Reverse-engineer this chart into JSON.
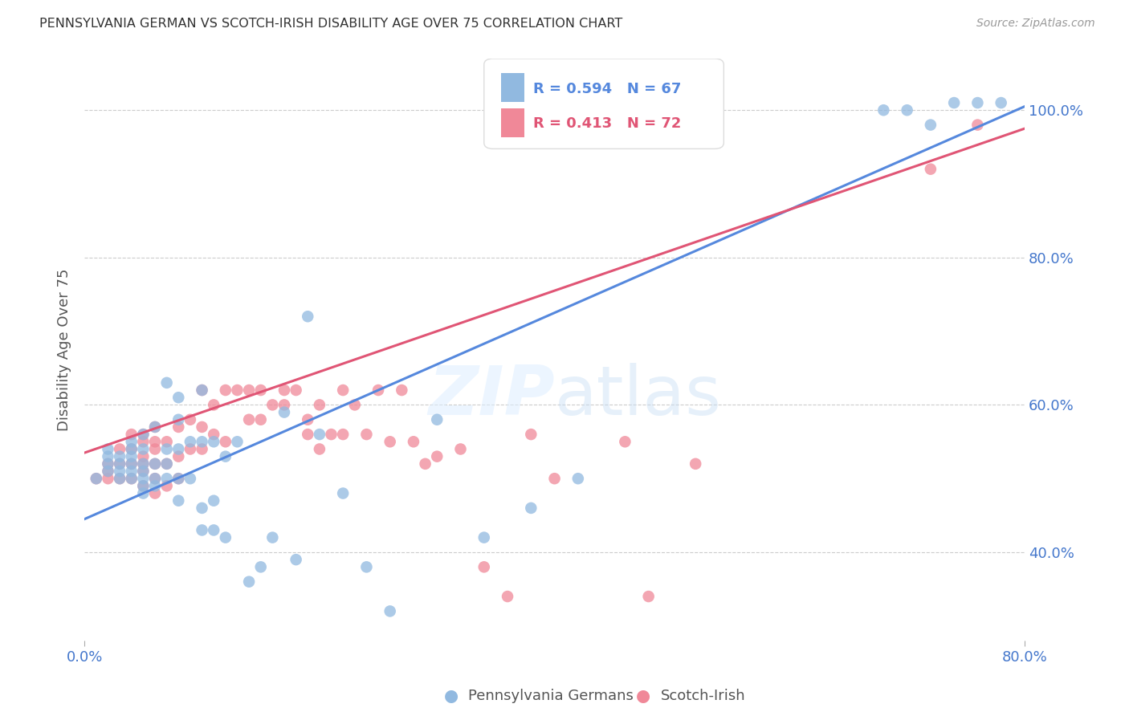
{
  "title": "PENNSYLVANIA GERMAN VS SCOTCH-IRISH DISABILITY AGE OVER 75 CORRELATION CHART",
  "source": "Source: ZipAtlas.com",
  "ylabel": "Disability Age Over 75",
  "xlabel_ticks": [
    "0.0%",
    "80.0%"
  ],
  "ylabel_ticks": [
    "40.0%",
    "60.0%",
    "80.0%",
    "100.0%"
  ],
  "xmin": 0.0,
  "xmax": 0.8,
  "ymin": 0.28,
  "ymax": 1.07,
  "legend1_label": "Pennsylvania Germans",
  "legend2_label": "Scotch-Irish",
  "legend1_color": "#91b9e0",
  "legend2_color": "#f08898",
  "trendline1_color": "#5588dd",
  "trendline2_color": "#e05575",
  "R1": 0.594,
  "N1": 67,
  "R2": 0.413,
  "N2": 72,
  "axis_tick_color": "#4477cc",
  "grid_color": "#cccccc",
  "pg_x": [
    0.01,
    0.02,
    0.02,
    0.02,
    0.02,
    0.03,
    0.03,
    0.03,
    0.03,
    0.04,
    0.04,
    0.04,
    0.04,
    0.04,
    0.04,
    0.05,
    0.05,
    0.05,
    0.05,
    0.05,
    0.05,
    0.05,
    0.06,
    0.06,
    0.06,
    0.06,
    0.07,
    0.07,
    0.07,
    0.07,
    0.08,
    0.08,
    0.08,
    0.08,
    0.08,
    0.09,
    0.09,
    0.1,
    0.1,
    0.1,
    0.1,
    0.11,
    0.11,
    0.11,
    0.12,
    0.12,
    0.13,
    0.14,
    0.15,
    0.16,
    0.17,
    0.18,
    0.19,
    0.2,
    0.22,
    0.24,
    0.26,
    0.3,
    0.34,
    0.38,
    0.42,
    0.68,
    0.7,
    0.72,
    0.74,
    0.76,
    0.78
  ],
  "pg_y": [
    0.5,
    0.51,
    0.52,
    0.53,
    0.54,
    0.5,
    0.51,
    0.52,
    0.53,
    0.5,
    0.51,
    0.52,
    0.53,
    0.54,
    0.55,
    0.48,
    0.49,
    0.5,
    0.51,
    0.52,
    0.54,
    0.56,
    0.49,
    0.5,
    0.52,
    0.57,
    0.5,
    0.52,
    0.54,
    0.63,
    0.47,
    0.5,
    0.54,
    0.58,
    0.61,
    0.5,
    0.55,
    0.43,
    0.46,
    0.55,
    0.62,
    0.43,
    0.47,
    0.55,
    0.42,
    0.53,
    0.55,
    0.36,
    0.38,
    0.42,
    0.59,
    0.39,
    0.72,
    0.56,
    0.48,
    0.38,
    0.32,
    0.58,
    0.42,
    0.46,
    0.5,
    1.0,
    1.0,
    0.98,
    1.01,
    1.01,
    1.01
  ],
  "si_x": [
    0.01,
    0.02,
    0.02,
    0.02,
    0.03,
    0.03,
    0.03,
    0.04,
    0.04,
    0.04,
    0.04,
    0.05,
    0.05,
    0.05,
    0.05,
    0.05,
    0.05,
    0.06,
    0.06,
    0.06,
    0.06,
    0.06,
    0.06,
    0.07,
    0.07,
    0.07,
    0.08,
    0.08,
    0.08,
    0.09,
    0.09,
    0.1,
    0.1,
    0.1,
    0.11,
    0.11,
    0.12,
    0.12,
    0.13,
    0.14,
    0.14,
    0.15,
    0.15,
    0.16,
    0.17,
    0.17,
    0.18,
    0.19,
    0.19,
    0.2,
    0.2,
    0.21,
    0.22,
    0.22,
    0.23,
    0.24,
    0.25,
    0.26,
    0.27,
    0.28,
    0.29,
    0.3,
    0.32,
    0.34,
    0.36,
    0.38,
    0.4,
    0.46,
    0.48,
    0.52,
    0.72,
    0.76
  ],
  "si_y": [
    0.5,
    0.5,
    0.51,
    0.52,
    0.5,
    0.52,
    0.54,
    0.5,
    0.52,
    0.54,
    0.56,
    0.49,
    0.51,
    0.52,
    0.53,
    0.55,
    0.56,
    0.48,
    0.5,
    0.52,
    0.54,
    0.55,
    0.57,
    0.49,
    0.52,
    0.55,
    0.5,
    0.53,
    0.57,
    0.54,
    0.58,
    0.54,
    0.57,
    0.62,
    0.56,
    0.6,
    0.55,
    0.62,
    0.62,
    0.58,
    0.62,
    0.58,
    0.62,
    0.6,
    0.6,
    0.62,
    0.62,
    0.56,
    0.58,
    0.54,
    0.6,
    0.56,
    0.56,
    0.62,
    0.6,
    0.56,
    0.62,
    0.55,
    0.62,
    0.55,
    0.52,
    0.53,
    0.54,
    0.38,
    0.34,
    0.56,
    0.5,
    0.55,
    0.34,
    0.52,
    0.92,
    0.98
  ],
  "trendline1_x0": 0.0,
  "trendline1_y0": 0.445,
  "trendline1_x1": 0.8,
  "trendline1_y1": 1.005,
  "trendline2_x0": 0.0,
  "trendline2_y0": 0.535,
  "trendline2_x1": 0.8,
  "trendline2_y1": 0.975
}
